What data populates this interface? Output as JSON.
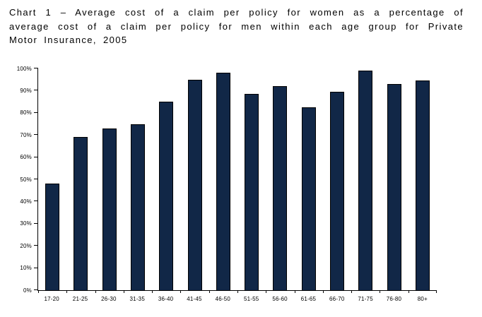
{
  "title": {
    "lines": [
      "Chart 1 – Average cost of a claim per policy for women as a percentage of",
      "average cost of a claim per policy for men within each age group for Private",
      "Motor Insurance, 2005"
    ]
  },
  "chart_data": {
    "type": "bar",
    "title": "Chart 1 – Average cost of a claim per policy for women as a percentage of average cost of a claim per policy for men within each age group for Private Motor Insurance, 2005",
    "categories": [
      "17-20",
      "21-25",
      "26-30",
      "31-35",
      "36-40",
      "41-45",
      "46-50",
      "51-55",
      "56-60",
      "61-65",
      "66-70",
      "71-75",
      "76-80",
      "80+"
    ],
    "values": [
      48,
      69,
      73,
      75,
      85,
      95,
      98,
      88.5,
      92,
      82.5,
      89.5,
      99,
      93,
      94.5
    ],
    "xlabel": "",
    "ylabel": "",
    "ylim": [
      0,
      100
    ],
    "ytick_step": 10,
    "ytick_labels": [
      "0%",
      "10%",
      "20%",
      "30%",
      "40%",
      "50%",
      "60%",
      "70%",
      "80%",
      "90%",
      "100%"
    ],
    "grid": false,
    "legend": false,
    "colors": {
      "bar_fill": "#112747",
      "bar_border": "#000000",
      "axis": "#000000",
      "background": "#ffffff",
      "text": "#000000"
    }
  }
}
